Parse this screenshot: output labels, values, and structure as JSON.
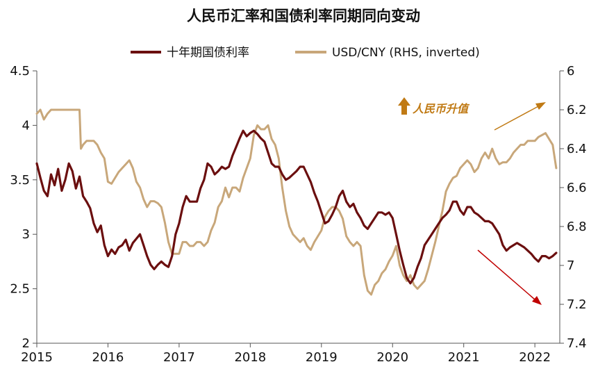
{
  "chart_data": {
    "type": "line",
    "title": "人民币汇率和国债利率同期同向变动",
    "legend": {
      "placement": "top-center",
      "entries": [
        "十年期国债利率",
        "USD/CNY (RHS, inverted)"
      ]
    },
    "x_ticks": [
      "2015",
      "2016",
      "2017",
      "2018",
      "2019",
      "2020",
      "2021",
      "2022"
    ],
    "xlim": [
      2015.0,
      2022.35
    ],
    "y_left": {
      "ticks": [
        "2",
        "2.5",
        "3",
        "3.5",
        "4",
        "4.5"
      ],
      "ylim": [
        2,
        4.5
      ]
    },
    "y_right": {
      "ticks": [
        "6",
        "6.2",
        "6.4",
        "6.6",
        "6.8",
        "7",
        "7.2",
        "7.4"
      ],
      "ylim": [
        6,
        7.4
      ],
      "inverted": true
    },
    "series": [
      {
        "name": "十年期国债利率",
        "axis": "left",
        "color": "#6b0f0f",
        "points": [
          [
            2015.0,
            3.65
          ],
          [
            2015.05,
            3.52
          ],
          [
            2015.1,
            3.4
          ],
          [
            2015.15,
            3.35
          ],
          [
            2015.2,
            3.55
          ],
          [
            2015.25,
            3.45
          ],
          [
            2015.3,
            3.6
          ],
          [
            2015.35,
            3.4
          ],
          [
            2015.4,
            3.5
          ],
          [
            2015.45,
            3.65
          ],
          [
            2015.5,
            3.58
          ],
          [
            2015.55,
            3.42
          ],
          [
            2015.6,
            3.53
          ],
          [
            2015.65,
            3.35
          ],
          [
            2015.7,
            3.3
          ],
          [
            2015.75,
            3.24
          ],
          [
            2015.8,
            3.1
          ],
          [
            2015.85,
            3.02
          ],
          [
            2015.9,
            3.08
          ],
          [
            2015.95,
            2.9
          ],
          [
            2016.0,
            2.8
          ],
          [
            2016.05,
            2.86
          ],
          [
            2016.1,
            2.82
          ],
          [
            2016.15,
            2.88
          ],
          [
            2016.2,
            2.9
          ],
          [
            2016.25,
            2.95
          ],
          [
            2016.3,
            2.85
          ],
          [
            2016.35,
            2.92
          ],
          [
            2016.4,
            2.96
          ],
          [
            2016.45,
            3.0
          ],
          [
            2016.5,
            2.9
          ],
          [
            2016.55,
            2.8
          ],
          [
            2016.6,
            2.72
          ],
          [
            2016.65,
            2.68
          ],
          [
            2016.7,
            2.72
          ],
          [
            2016.75,
            2.75
          ],
          [
            2016.8,
            2.72
          ],
          [
            2016.85,
            2.7
          ],
          [
            2016.9,
            2.8
          ],
          [
            2016.95,
            3.0
          ],
          [
            2017.0,
            3.1
          ],
          [
            2017.05,
            3.25
          ],
          [
            2017.1,
            3.35
          ],
          [
            2017.15,
            3.3
          ],
          [
            2017.2,
            3.3
          ],
          [
            2017.25,
            3.3
          ],
          [
            2017.3,
            3.42
          ],
          [
            2017.35,
            3.5
          ],
          [
            2017.4,
            3.65
          ],
          [
            2017.45,
            3.62
          ],
          [
            2017.5,
            3.55
          ],
          [
            2017.55,
            3.58
          ],
          [
            2017.6,
            3.62
          ],
          [
            2017.65,
            3.6
          ],
          [
            2017.7,
            3.62
          ],
          [
            2017.75,
            3.72
          ],
          [
            2017.8,
            3.8
          ],
          [
            2017.85,
            3.88
          ],
          [
            2017.9,
            3.95
          ],
          [
            2017.95,
            3.9
          ],
          [
            2018.0,
            3.93
          ],
          [
            2018.05,
            3.95
          ],
          [
            2018.1,
            3.92
          ],
          [
            2018.15,
            3.88
          ],
          [
            2018.2,
            3.85
          ],
          [
            2018.25,
            3.75
          ],
          [
            2018.3,
            3.65
          ],
          [
            2018.35,
            3.62
          ],
          [
            2018.4,
            3.62
          ],
          [
            2018.45,
            3.55
          ],
          [
            2018.5,
            3.5
          ],
          [
            2018.55,
            3.52
          ],
          [
            2018.6,
            3.55
          ],
          [
            2018.65,
            3.58
          ],
          [
            2018.7,
            3.62
          ],
          [
            2018.75,
            3.62
          ],
          [
            2018.8,
            3.55
          ],
          [
            2018.85,
            3.48
          ],
          [
            2018.9,
            3.38
          ],
          [
            2018.95,
            3.3
          ],
          [
            2019.0,
            3.2
          ],
          [
            2019.05,
            3.1
          ],
          [
            2019.1,
            3.12
          ],
          [
            2019.15,
            3.18
          ],
          [
            2019.2,
            3.25
          ],
          [
            2019.25,
            3.35
          ],
          [
            2019.3,
            3.4
          ],
          [
            2019.35,
            3.3
          ],
          [
            2019.4,
            3.25
          ],
          [
            2019.45,
            3.28
          ],
          [
            2019.5,
            3.2
          ],
          [
            2019.55,
            3.15
          ],
          [
            2019.6,
            3.08
          ],
          [
            2019.65,
            3.05
          ],
          [
            2019.7,
            3.1
          ],
          [
            2019.75,
            3.15
          ],
          [
            2019.8,
            3.2
          ],
          [
            2019.85,
            3.2
          ],
          [
            2019.9,
            3.18
          ],
          [
            2019.95,
            3.2
          ],
          [
            2020.0,
            3.15
          ],
          [
            2020.05,
            3.0
          ],
          [
            2020.1,
            2.85
          ],
          [
            2020.15,
            2.72
          ],
          [
            2020.2,
            2.6
          ],
          [
            2020.25,
            2.55
          ],
          [
            2020.3,
            2.6
          ],
          [
            2020.35,
            2.7
          ],
          [
            2020.4,
            2.78
          ],
          [
            2020.45,
            2.9
          ],
          [
            2020.5,
            2.95
          ],
          [
            2020.55,
            3.0
          ],
          [
            2020.6,
            3.05
          ],
          [
            2020.65,
            3.1
          ],
          [
            2020.7,
            3.15
          ],
          [
            2020.75,
            3.18
          ],
          [
            2020.8,
            3.22
          ],
          [
            2020.85,
            3.3
          ],
          [
            2020.9,
            3.3
          ],
          [
            2020.95,
            3.22
          ],
          [
            2021.0,
            3.18
          ],
          [
            2021.05,
            3.25
          ],
          [
            2021.1,
            3.25
          ],
          [
            2021.15,
            3.2
          ],
          [
            2021.2,
            3.18
          ],
          [
            2021.25,
            3.15
          ],
          [
            2021.3,
            3.12
          ],
          [
            2021.35,
            3.12
          ],
          [
            2021.4,
            3.1
          ],
          [
            2021.45,
            3.05
          ],
          [
            2021.5,
            3.0
          ],
          [
            2021.55,
            2.9
          ],
          [
            2021.6,
            2.85
          ],
          [
            2021.65,
            2.88
          ],
          [
            2021.7,
            2.9
          ],
          [
            2021.75,
            2.92
          ],
          [
            2021.8,
            2.9
          ],
          [
            2021.85,
            2.88
          ],
          [
            2021.9,
            2.85
          ],
          [
            2021.95,
            2.82
          ],
          [
            2022.0,
            2.78
          ],
          [
            2022.05,
            2.75
          ],
          [
            2022.1,
            2.8
          ],
          [
            2022.15,
            2.8
          ],
          [
            2022.2,
            2.78
          ],
          [
            2022.25,
            2.8
          ],
          [
            2022.3,
            2.83
          ]
        ]
      },
      {
        "name": "USD/CNY (RHS, inverted)",
        "axis": "right",
        "color": "#c8a77a",
        "points": [
          [
            2015.0,
            6.22
          ],
          [
            2015.05,
            6.2
          ],
          [
            2015.1,
            6.25
          ],
          [
            2015.15,
            6.22
          ],
          [
            2015.2,
            6.2
          ],
          [
            2015.3,
            6.2
          ],
          [
            2015.4,
            6.2
          ],
          [
            2015.5,
            6.2
          ],
          [
            2015.6,
            6.2
          ],
          [
            2015.62,
            6.4
          ],
          [
            2015.65,
            6.38
          ],
          [
            2015.7,
            6.36
          ],
          [
            2015.8,
            6.36
          ],
          [
            2015.85,
            6.38
          ],
          [
            2015.9,
            6.42
          ],
          [
            2015.95,
            6.45
          ],
          [
            2016.0,
            6.57
          ],
          [
            2016.05,
            6.58
          ],
          [
            2016.1,
            6.55
          ],
          [
            2016.15,
            6.52
          ],
          [
            2016.2,
            6.5
          ],
          [
            2016.25,
            6.48
          ],
          [
            2016.3,
            6.46
          ],
          [
            2016.35,
            6.5
          ],
          [
            2016.4,
            6.57
          ],
          [
            2016.45,
            6.6
          ],
          [
            2016.5,
            6.66
          ],
          [
            2016.55,
            6.7
          ],
          [
            2016.6,
            6.67
          ],
          [
            2016.65,
            6.67
          ],
          [
            2016.7,
            6.68
          ],
          [
            2016.75,
            6.7
          ],
          [
            2016.8,
            6.78
          ],
          [
            2016.85,
            6.88
          ],
          [
            2016.9,
            6.94
          ],
          [
            2016.95,
            6.94
          ],
          [
            2017.0,
            6.94
          ],
          [
            2017.05,
            6.88
          ],
          [
            2017.1,
            6.88
          ],
          [
            2017.15,
            6.9
          ],
          [
            2017.2,
            6.9
          ],
          [
            2017.25,
            6.88
          ],
          [
            2017.3,
            6.88
          ],
          [
            2017.35,
            6.9
          ],
          [
            2017.4,
            6.88
          ],
          [
            2017.45,
            6.82
          ],
          [
            2017.5,
            6.78
          ],
          [
            2017.55,
            6.7
          ],
          [
            2017.6,
            6.67
          ],
          [
            2017.65,
            6.6
          ],
          [
            2017.7,
            6.65
          ],
          [
            2017.75,
            6.6
          ],
          [
            2017.8,
            6.6
          ],
          [
            2017.85,
            6.62
          ],
          [
            2017.9,
            6.55
          ],
          [
            2017.95,
            6.5
          ],
          [
            2018.0,
            6.45
          ],
          [
            2018.05,
            6.33
          ],
          [
            2018.1,
            6.28
          ],
          [
            2018.15,
            6.3
          ],
          [
            2018.2,
            6.3
          ],
          [
            2018.25,
            6.28
          ],
          [
            2018.3,
            6.35
          ],
          [
            2018.35,
            6.38
          ],
          [
            2018.4,
            6.45
          ],
          [
            2018.45,
            6.6
          ],
          [
            2018.5,
            6.72
          ],
          [
            2018.55,
            6.8
          ],
          [
            2018.6,
            6.84
          ],
          [
            2018.65,
            6.86
          ],
          [
            2018.7,
            6.88
          ],
          [
            2018.75,
            6.86
          ],
          [
            2018.8,
            6.9
          ],
          [
            2018.85,
            6.92
          ],
          [
            2018.9,
            6.88
          ],
          [
            2018.95,
            6.85
          ],
          [
            2019.0,
            6.82
          ],
          [
            2019.05,
            6.75
          ],
          [
            2019.1,
            6.72
          ],
          [
            2019.15,
            6.7
          ],
          [
            2019.2,
            6.7
          ],
          [
            2019.25,
            6.72
          ],
          [
            2019.3,
            6.76
          ],
          [
            2019.35,
            6.85
          ],
          [
            2019.4,
            6.88
          ],
          [
            2019.45,
            6.9
          ],
          [
            2019.5,
            6.88
          ],
          [
            2019.55,
            6.9
          ],
          [
            2019.6,
            7.05
          ],
          [
            2019.65,
            7.13
          ],
          [
            2019.7,
            7.15
          ],
          [
            2019.75,
            7.1
          ],
          [
            2019.8,
            7.08
          ],
          [
            2019.85,
            7.04
          ],
          [
            2019.9,
            7.02
          ],
          [
            2019.95,
            6.98
          ],
          [
            2020.0,
            6.95
          ],
          [
            2020.05,
            6.9
          ],
          [
            2020.1,
            7.0
          ],
          [
            2020.15,
            7.05
          ],
          [
            2020.2,
            7.08
          ],
          [
            2020.25,
            7.05
          ],
          [
            2020.3,
            7.1
          ],
          [
            2020.35,
            7.12
          ],
          [
            2020.4,
            7.1
          ],
          [
            2020.45,
            7.08
          ],
          [
            2020.5,
            7.02
          ],
          [
            2020.55,
            6.95
          ],
          [
            2020.6,
            6.88
          ],
          [
            2020.65,
            6.8
          ],
          [
            2020.7,
            6.72
          ],
          [
            2020.75,
            6.62
          ],
          [
            2020.8,
            6.58
          ],
          [
            2020.85,
            6.55
          ],
          [
            2020.9,
            6.54
          ],
          [
            2020.95,
            6.5
          ],
          [
            2021.0,
            6.48
          ],
          [
            2021.05,
            6.46
          ],
          [
            2021.1,
            6.48
          ],
          [
            2021.15,
            6.52
          ],
          [
            2021.2,
            6.5
          ],
          [
            2021.25,
            6.45
          ],
          [
            2021.3,
            6.42
          ],
          [
            2021.35,
            6.45
          ],
          [
            2021.4,
            6.4
          ],
          [
            2021.45,
            6.45
          ],
          [
            2021.5,
            6.48
          ],
          [
            2021.55,
            6.47
          ],
          [
            2021.6,
            6.47
          ],
          [
            2021.65,
            6.45
          ],
          [
            2021.7,
            6.42
          ],
          [
            2021.75,
            6.4
          ],
          [
            2021.8,
            6.38
          ],
          [
            2021.85,
            6.38
          ],
          [
            2021.9,
            6.36
          ],
          [
            2021.95,
            6.36
          ],
          [
            2022.0,
            6.36
          ],
          [
            2022.05,
            6.34
          ],
          [
            2022.1,
            6.33
          ],
          [
            2022.15,
            6.32
          ],
          [
            2022.2,
            6.35
          ],
          [
            2022.25,
            6.38
          ],
          [
            2022.3,
            6.5
          ]
        ]
      }
    ],
    "annotations": [
      {
        "text": "人民币升值",
        "color": "#c07a14"
      }
    ]
  }
}
